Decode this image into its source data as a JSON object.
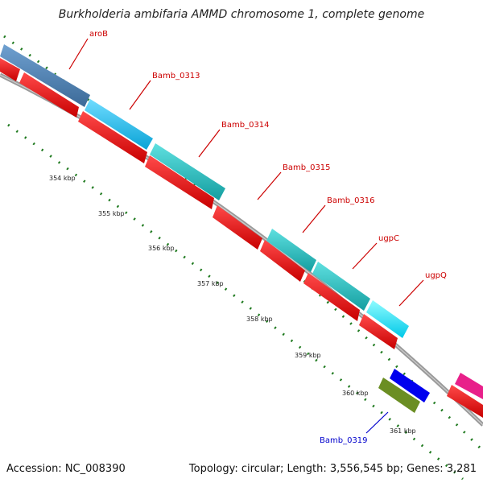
{
  "header": {
    "title": "Burkholderia ambifaria AMMD chromosome 1, complete genome"
  },
  "footer": {
    "accession": "Accession: NC_008390",
    "summary": "Topology: circular; Length: 3,556,545 bp; Genes: 3,281"
  },
  "scale": {
    "ticks": [
      "354 kbp",
      "355 kbp",
      "356 kbp",
      "357 kbp",
      "358 kbp",
      "359 kbp",
      "360 kbp",
      "361 kbp"
    ]
  },
  "genes": [
    {
      "name": "aroB",
      "color": "#4a7fb0",
      "label_color": "#cc0000"
    },
    {
      "name": "Bamb_0313",
      "color": "#1eb6e6",
      "label_color": "#cc0000"
    },
    {
      "name": "Bamb_0314",
      "color": "#1fbcbf",
      "label_color": "#cc0000"
    },
    {
      "name": "Bamb_0315",
      "color": "#cc0000",
      "label_color": "#cc0000"
    },
    {
      "name": "Bamb_0316",
      "color": "#1fbcbf",
      "label_color": "#cc0000"
    },
    {
      "name": "ugpC",
      "color": "#1fbcbf",
      "label_color": "#cc0000"
    },
    {
      "name": "ugpQ",
      "color": "#00e5ff",
      "label_color": "#cc0000"
    },
    {
      "name": "Bamb_0319",
      "color": "#0000ee",
      "label_color": "#0000cc"
    }
  ],
  "colors": {
    "cds_track": "#ee1111",
    "backbone": "#8a8a8a",
    "tick_mark": "#1f7a1f",
    "olive_gene": "#6b8e23",
    "magenta_gene": "#e8208a"
  }
}
